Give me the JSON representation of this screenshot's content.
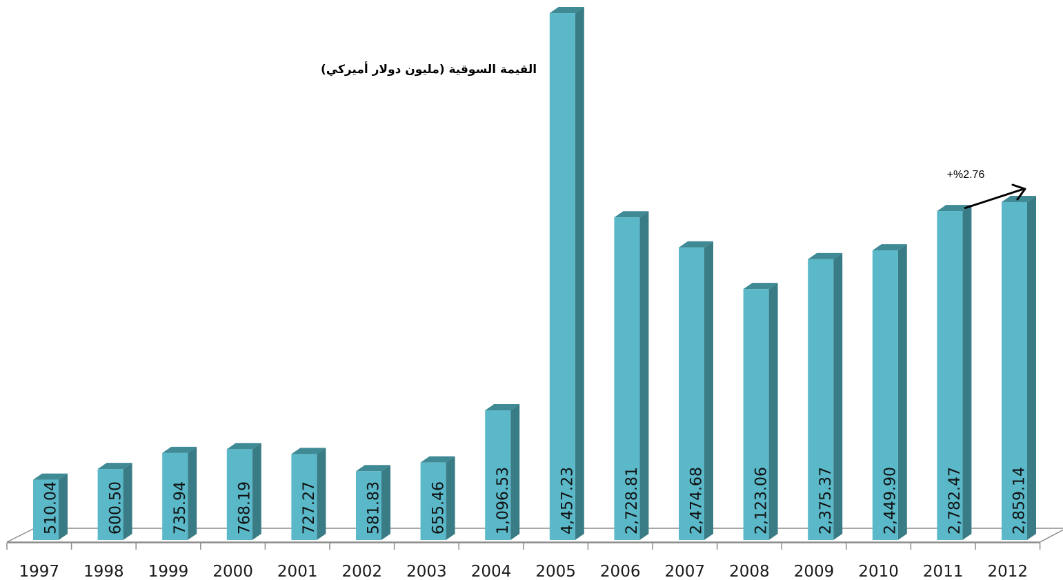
{
  "chart_data": {
    "type": "bar",
    "title": "القيمة السوقية (مليون دولار أميركي)",
    "categories": [
      "1997",
      "1998",
      "1999",
      "2000",
      "2001",
      "2002",
      "2003",
      "2004",
      "2005",
      "2006",
      "2007",
      "2008",
      "2009",
      "2010",
      "2011",
      "2012"
    ],
    "values": [
      510.04,
      600.5,
      735.94,
      768.19,
      727.27,
      581.83,
      655.46,
      1096.53,
      4457.23,
      2728.81,
      2474.68,
      2123.06,
      2375.37,
      2449.9,
      2782.47,
      2859.14
    ],
    "value_labels": [
      "510.04",
      "600.50",
      "735.94",
      "768.19",
      "727.27",
      "581.83",
      "655.46",
      "1,096.53",
      "4,457.23",
      "2,728.81",
      "2,474.68",
      "2,123.06",
      "2,375.37",
      "2,449.90",
      "2,782.47",
      "2,859.14"
    ],
    "annotation": "+%2.76",
    "style": "3d-bar",
    "colors": {
      "bar_front": "#5ab8c8",
      "bar_side": "#3a7c85",
      "bar_top": "#3f8a95",
      "axis": "#8c8c8c"
    },
    "grid": false,
    "legend": "none"
  }
}
